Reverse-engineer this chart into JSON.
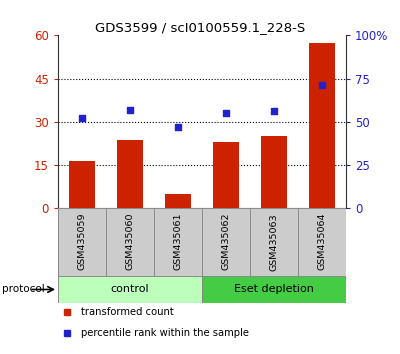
{
  "title": "GDS3599 / scI0100559.1_228-S",
  "samples": [
    "GSM435059",
    "GSM435060",
    "GSM435061",
    "GSM435062",
    "GSM435063",
    "GSM435064"
  ],
  "bar_values": [
    16.2,
    23.5,
    4.8,
    22.8,
    25.0,
    57.5
  ],
  "scatter_values": [
    52,
    57,
    47,
    55,
    56,
    71
  ],
  "left_ylim": [
    0,
    60
  ],
  "left_yticks": [
    0,
    15,
    30,
    45,
    60
  ],
  "right_ylim": [
    0,
    100
  ],
  "right_yticks": [
    0,
    25,
    50,
    75,
    100
  ],
  "right_yticklabels": [
    "0",
    "25",
    "50",
    "75",
    "100%"
  ],
  "bar_color": "#cc2200",
  "scatter_color": "#2222cc",
  "protocol_label": "protocol",
  "control_color": "#bbffbb",
  "eset_color": "#44cc44",
  "legend_items": [
    {
      "label": "transformed count",
      "color": "#cc2200"
    },
    {
      "label": "percentile rank within the sample",
      "color": "#2222cc"
    }
  ],
  "left_tick_color": "#cc2200",
  "right_tick_color": "#2222cc",
  "label_bg_color": "#cccccc",
  "label_border_color": "#888888"
}
